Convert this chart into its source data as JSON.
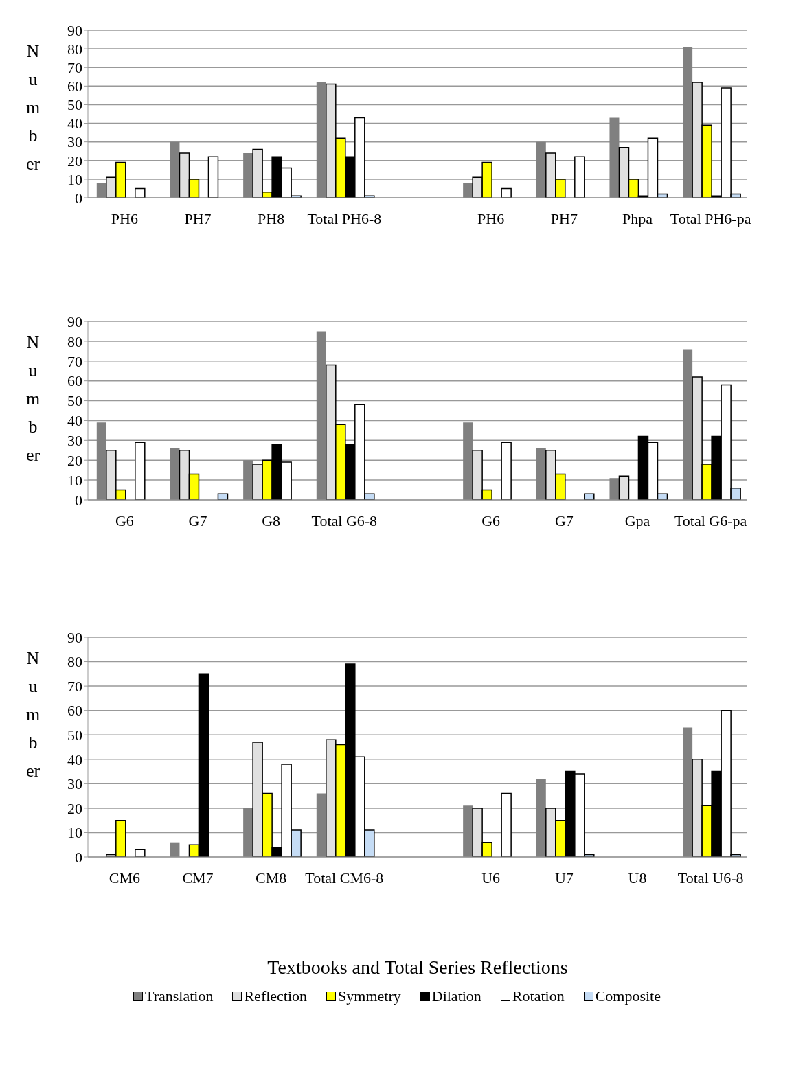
{
  "chart_data": [
    {
      "type": "bar",
      "ylabel": "Number",
      "categories": [
        "PH6",
        "PH7",
        "PH8",
        "Total PH6-8",
        null,
        "PH6",
        "PH7",
        "Phpa",
        "Total PH6-pa"
      ],
      "ylim": [
        0,
        90
      ],
      "yticks": [
        0,
        10,
        20,
        30,
        40,
        50,
        60,
        70,
        80,
        90
      ],
      "grid": "y",
      "legend": false,
      "series": [
        {
          "color": "#808080",
          "values": [
            8,
            30,
            24,
            62,
            null,
            8,
            30,
            43,
            81
          ]
        },
        {
          "color": "#e0e0e0",
          "values": [
            11,
            24,
            26,
            61,
            null,
            11,
            24,
            27,
            62
          ]
        },
        {
          "color": "#ffff00",
          "values": [
            19,
            10,
            3,
            32,
            null,
            19,
            10,
            10,
            39
          ]
        },
        {
          "color": "#000000",
          "values": [
            0,
            0,
            22,
            22,
            null,
            0,
            0,
            1,
            1
          ]
        },
        {
          "color": "#ffffff",
          "values": [
            5,
            22,
            16,
            43,
            null,
            5,
            22,
            32,
            59
          ]
        },
        {
          "color": "#c5dcf5",
          "values": [
            0,
            0,
            1,
            1,
            null,
            0,
            0,
            2,
            2
          ]
        }
      ]
    },
    {
      "type": "bar",
      "ylabel": "Number",
      "categories": [
        "G6",
        "G7",
        "G8",
        "Total G6-8",
        null,
        "G6",
        "G7",
        "Gpa",
        "Total G6-pa"
      ],
      "ylim": [
        0,
        90
      ],
      "yticks": [
        0,
        10,
        20,
        30,
        40,
        50,
        60,
        70,
        80,
        90
      ],
      "grid": "y",
      "legend": false,
      "series": [
        {
          "color": "#808080",
          "values": [
            39,
            26,
            20,
            85,
            null,
            39,
            26,
            11,
            76
          ]
        },
        {
          "color": "#e0e0e0",
          "values": [
            25,
            25,
            18,
            68,
            null,
            25,
            25,
            12,
            62
          ]
        },
        {
          "color": "#ffff00",
          "values": [
            5,
            13,
            20,
            38,
            null,
            5,
            13,
            0,
            18
          ]
        },
        {
          "color": "#000000",
          "values": [
            0,
            0,
            28,
            28,
            null,
            0,
            0,
            32,
            32
          ]
        },
        {
          "color": "#ffffff",
          "values": [
            29,
            0,
            19,
            48,
            null,
            29,
            0,
            29,
            58
          ]
        },
        {
          "color": "#c5dcf5",
          "values": [
            0,
            3,
            0,
            3,
            null,
            0,
            3,
            3,
            6
          ]
        }
      ]
    },
    {
      "type": "bar",
      "ylabel": "Number",
      "xlabel": "Textbooks and Total Series Reflections",
      "categories": [
        "CM6",
        "CM7",
        "CM8",
        "Total CM6-8",
        null,
        "U6",
        "U7",
        "U8",
        "Total U6-8"
      ],
      "ylim": [
        0,
        90
      ],
      "yticks": [
        0,
        10,
        20,
        30,
        40,
        50,
        60,
        70,
        80,
        90
      ],
      "grid": "y",
      "legend": "bottom",
      "series": [
        {
          "name": "Translation",
          "color": "#808080",
          "values": [
            0,
            6,
            20,
            26,
            null,
            21,
            32,
            0,
            53
          ]
        },
        {
          "name": "Reflection",
          "color": "#e0e0e0",
          "values": [
            1,
            0,
            47,
            48,
            null,
            20,
            20,
            0,
            40
          ]
        },
        {
          "name": "Symmetry",
          "color": "#ffff00",
          "values": [
            15,
            5,
            26,
            46,
            null,
            6,
            15,
            0,
            21
          ]
        },
        {
          "name": "Dilation",
          "color": "#000000",
          "values": [
            0,
            75,
            4,
            79,
            null,
            0,
            35,
            0,
            35
          ]
        },
        {
          "name": "Rotation",
          "color": "#ffffff",
          "values": [
            3,
            0,
            38,
            41,
            null,
            26,
            34,
            0,
            60
          ]
        },
        {
          "name": "Composite",
          "color": "#c5dcf5",
          "values": [
            0,
            0,
            11,
            11,
            null,
            0,
            1,
            0,
            1
          ]
        }
      ]
    }
  ]
}
